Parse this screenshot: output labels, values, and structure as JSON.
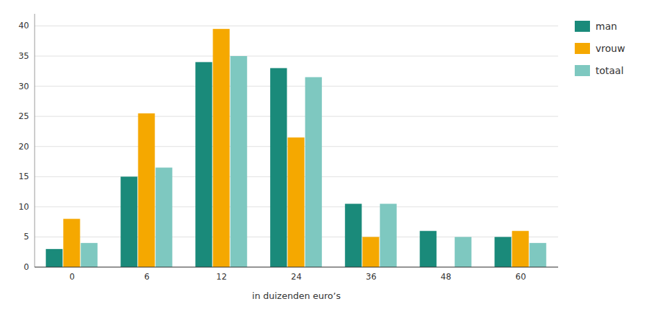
{
  "chart_data": {
    "type": "bar",
    "categories": [
      "0",
      "6",
      "12",
      "24",
      "36",
      "48",
      "60"
    ],
    "series": [
      {
        "name": "man",
        "color": "#1a8a7a",
        "values": [
          3,
          15,
          34,
          33,
          10.5,
          6,
          5
        ]
      },
      {
        "name": "vrouw",
        "color": "#f5a800",
        "values": [
          8,
          25.5,
          39.5,
          21.5,
          5,
          0,
          6
        ]
      },
      {
        "name": "totaal",
        "color": "#7ec8c0",
        "values": [
          4,
          16.5,
          35,
          31.5,
          10.5,
          5,
          4
        ]
      }
    ],
    "xlabel": "in duizenden euro’s",
    "ylim": [
      0,
      42
    ],
    "yticks": [
      0,
      5,
      10,
      15,
      20,
      25,
      30,
      35,
      40
    ],
    "grid": true,
    "legend": "right"
  }
}
